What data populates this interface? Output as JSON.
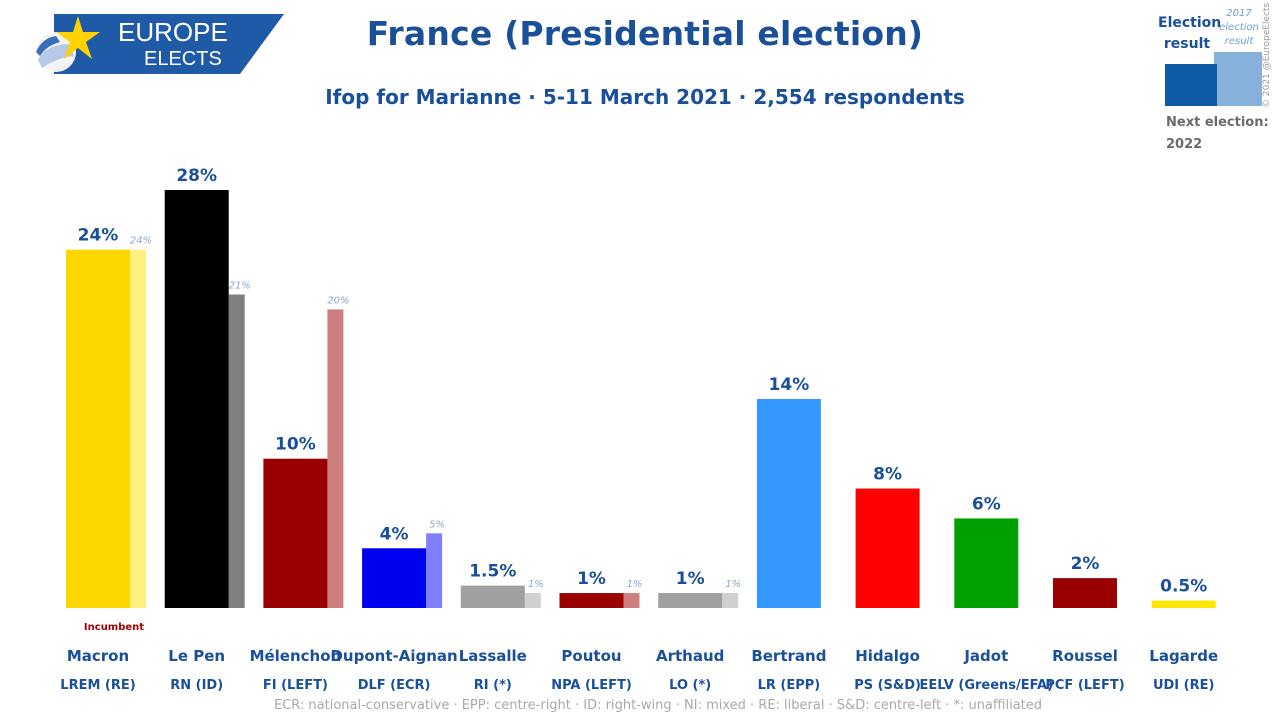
{
  "logo": {
    "line1": "EUROPE",
    "line2": "ELECTS"
  },
  "title": "France (Presidential election)",
  "subtitle": "Ifop for Marianne · 5-11 March 2021 · 2,554 respondents",
  "legend": {
    "current_label": "Election result",
    "previous_label": "2017 election result",
    "next_election_label": "Next election:",
    "next_election_year": "2022",
    "current_color": "#0f5aa6",
    "previous_color": "#86b1db"
  },
  "copyright": "© 2021 @EuropeElects",
  "footnote": "ECR: national-conservative · EPP: centre-right · ID: right-wing · NI: mixed · RE: liberal · S&D: centre-left · *: unaffiliated",
  "chart_data": {
    "type": "bar",
    "title": "France (Presidential election)",
    "ylim": [
      0,
      28
    ],
    "grid": false,
    "categories": [
      "Macron",
      "Le Pen",
      "Mélenchon",
      "Dupont-Aignan",
      "Lassalle",
      "Poutou",
      "Arthaud",
      "Bertrand",
      "Hidalgo",
      "Jadot",
      "Roussel",
      "Lagarde"
    ],
    "parties": [
      "LREM (RE)",
      "RN (ID)",
      "FI (LEFT)",
      "DLF (ECR)",
      "RI (*)",
      "NPA (LEFT)",
      "LO (*)",
      "LR (EPP)",
      "PS (S&D)",
      "EELV (Greens/EFA)",
      "PCF (LEFT)",
      "UDI (RE)"
    ],
    "series": [
      {
        "name": "Election result",
        "values": [
          24,
          28,
          10,
          4,
          1.5,
          1,
          1,
          14,
          8,
          6,
          2,
          0.5
        ]
      },
      {
        "name": "2017 election result",
        "values": [
          24,
          21,
          20,
          5,
          1,
          1,
          1,
          null,
          null,
          null,
          null,
          null
        ]
      }
    ],
    "value_labels": [
      "24%",
      "28%",
      "10%",
      "4%",
      "1.5%",
      "1%",
      "1%",
      "14%",
      "8%",
      "6%",
      "2%",
      "0.5%"
    ],
    "previous_labels": [
      "24%",
      "21%",
      "20%",
      "5%",
      "1%",
      "1%",
      "1%",
      null,
      null,
      null,
      null,
      null
    ],
    "colors": [
      "#ffd700",
      "#000000",
      "#9b0000",
      "#0000f0",
      "#a0a0a0",
      "#9b0000",
      "#a0a0a0",
      "#3399ff",
      "#ff0000",
      "#00a000",
      "#9b0000",
      "#ffe600"
    ],
    "previous_colors": [
      "#fff080",
      "#808080",
      "#cd7f7f",
      "#8080ff",
      "#d0d0d0",
      "#cd7f7f",
      "#d0d0d0",
      null,
      null,
      null,
      null,
      null
    ],
    "annotation": "Incumbent"
  }
}
